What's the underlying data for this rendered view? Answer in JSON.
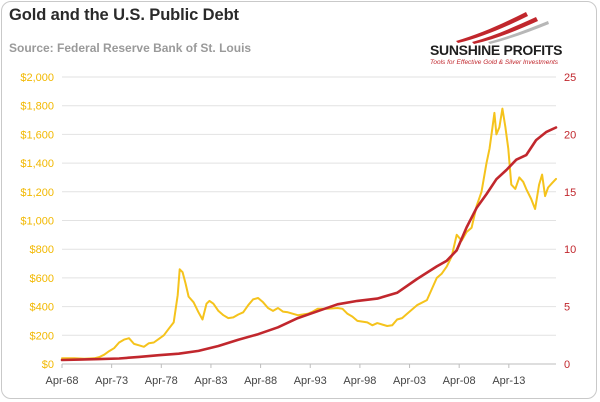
{
  "title": "Gold and the U.S. Public Debt",
  "subtitle": "Source: Federal Reserve Bank of St. Louis",
  "logo": {
    "brand": "SUNSHINE PROFITS",
    "tagline": "Tools for Effective Gold & Silver Investments"
  },
  "colors": {
    "gold": "#f5c31c",
    "debt": "#c1272d",
    "left_axis_text": "#f2b800",
    "right_axis_text": "#c1272d",
    "grid": "#e2e2e2"
  },
  "chart_data": {
    "type": "line",
    "title": "Gold and the U.S. Public Debt",
    "xlabel": "",
    "ylabel_left": "",
    "ylabel_right": "",
    "xlim": [
      1968.25,
      2018.0
    ],
    "ylim_left": [
      0,
      2000
    ],
    "ylim_right": [
      0,
      25
    ],
    "grid": "horizontal",
    "x_ticks": [
      1968.25,
      1973.25,
      1978.25,
      1983.25,
      1988.25,
      1993.25,
      1998.25,
      2003.25,
      2008.25,
      2013.25
    ],
    "x_tick_labels": [
      "Apr-68",
      "Apr-73",
      "Apr-78",
      "Apr-83",
      "Apr-88",
      "Apr-93",
      "Apr-98",
      "Apr-03",
      "Apr-08",
      "Apr-13"
    ],
    "y_left_ticks": [
      0,
      200,
      400,
      600,
      800,
      1000,
      1200,
      1400,
      1600,
      1800,
      2000
    ],
    "y_left_tick_labels": [
      "$0",
      "$200",
      "$400",
      "$600",
      "$800",
      "$1,000",
      "$1,200",
      "$1,400",
      "$1,600",
      "$1,800",
      "$2,000"
    ],
    "y_right_ticks": [
      0,
      5,
      10,
      15,
      20,
      25
    ],
    "y_right_tick_labels": [
      "0",
      "5",
      "10",
      "15",
      "20",
      "25"
    ],
    "series": [
      {
        "axis": "left",
        "x": [
          1968.25,
          1969.5,
          1970.5,
          1971.5,
          1972.0,
          1972.5,
          1973.0,
          1973.5,
          1974.0,
          1974.5,
          1975.0,
          1975.5,
          1976.0,
          1976.5,
          1977.0,
          1977.5,
          1978.0,
          1978.5,
          1979.0,
          1979.5,
          1979.9,
          1980.1,
          1980.4,
          1980.7,
          1981.0,
          1981.5,
          1982.0,
          1982.4,
          1982.8,
          1983.1,
          1983.5,
          1984.0,
          1984.5,
          1985.0,
          1985.5,
          1986.0,
          1986.5,
          1987.0,
          1987.5,
          1988.0,
          1988.5,
          1989.0,
          1989.5,
          1990.0,
          1990.5,
          1991.0,
          1992.0,
          1993.0,
          1993.5,
          1994.0,
          1995.0,
          1996.0,
          1996.5,
          1997.0,
          1997.5,
          1998.0,
          1999.0,
          1999.5,
          2000.0,
          2001.0,
          2001.5,
          2002.0,
          2002.5,
          2003.0,
          2004.0,
          2005.0,
          2006.0,
          2006.5,
          2007.0,
          2007.5,
          2008.0,
          2008.5,
          2009.0,
          2009.5,
          2010.0,
          2010.5,
          2011.0,
          2011.3,
          2011.6,
          2011.8,
          2012.0,
          2012.3,
          2012.6,
          2012.9,
          2013.2,
          2013.5,
          2013.9,
          2014.3,
          2014.7,
          2015.0,
          2015.5,
          2015.9,
          2016.3,
          2016.6,
          2016.9,
          2017.2,
          2017.6,
          2018.0
        ],
        "values": [
          40,
          40,
          36,
          40,
          48,
          65,
          90,
          110,
          150,
          170,
          180,
          140,
          130,
          120,
          145,
          150,
          175,
          200,
          245,
          290,
          480,
          660,
          640,
          560,
          470,
          430,
          360,
          310,
          420,
          440,
          420,
          370,
          340,
          320,
          325,
          345,
          360,
          410,
          450,
          460,
          430,
          390,
          370,
          390,
          365,
          360,
          340,
          350,
          365,
          385,
          385,
          390,
          385,
          350,
          330,
          300,
          290,
          270,
          285,
          265,
          270,
          310,
          320,
          350,
          410,
          445,
          600,
          630,
          680,
          750,
          900,
          860,
          920,
          950,
          1100,
          1200,
          1400,
          1500,
          1650,
          1750,
          1600,
          1650,
          1780,
          1650,
          1500,
          1250,
          1220,
          1300,
          1270,
          1220,
          1150,
          1080,
          1250,
          1320,
          1170,
          1230,
          1260,
          1290
        ]
      },
      {
        "axis": "right",
        "x": [
          1968.25,
          1970,
          1972,
          1974,
          1976,
          1978,
          1980,
          1982,
          1984,
          1986,
          1988,
          1990,
          1992,
          1994,
          1996,
          1998,
          2000,
          2002,
          2004,
          2006,
          2007,
          2008,
          2009,
          2010,
          2011,
          2012,
          2013,
          2014,
          2015,
          2016,
          2017,
          2018.0
        ],
        "values": [
          0.35,
          0.38,
          0.43,
          0.48,
          0.62,
          0.77,
          0.9,
          1.14,
          1.57,
          2.12,
          2.6,
          3.2,
          4.0,
          4.6,
          5.2,
          5.5,
          5.7,
          6.2,
          7.4,
          8.5,
          9.0,
          9.9,
          11.9,
          13.6,
          14.8,
          16.1,
          16.9,
          17.8,
          18.2,
          19.5,
          20.2,
          20.6
        ]
      }
    ]
  }
}
